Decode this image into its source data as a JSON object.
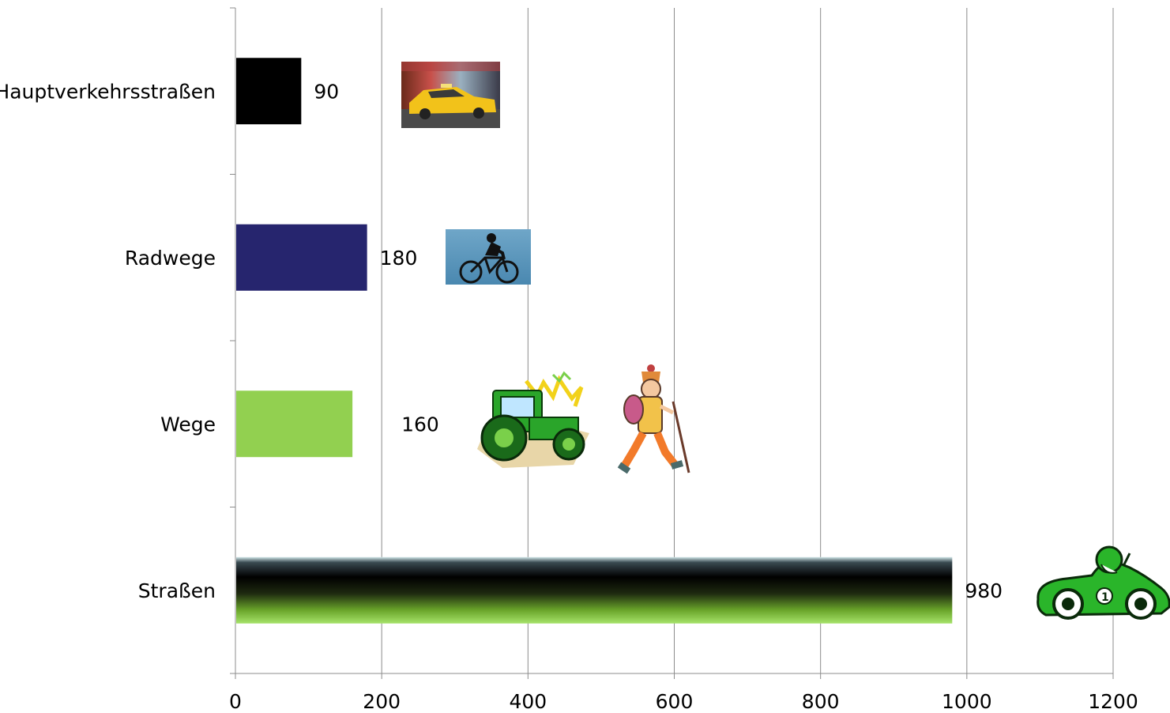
{
  "chart_data": {
    "type": "bar",
    "orientation": "horizontal",
    "categories": [
      "Hauptverkehrsstraßen",
      "Radwege",
      "Wege",
      "Straßen"
    ],
    "values": [
      90,
      180,
      160,
      980
    ],
    "value_labels": [
      "90",
      "180",
      "160",
      "980"
    ],
    "colors": [
      "#000000",
      "#26256e",
      "#92d050",
      "gradient-black-green"
    ],
    "xlim": [
      0,
      1200
    ],
    "xticks": [
      "0",
      "200",
      "400",
      "600",
      "800",
      "1000",
      "1200"
    ],
    "grid": "vertical",
    "title": "",
    "xlabel": "",
    "ylabel": "",
    "legend": "none",
    "illustrations": [
      "taxi-photo",
      "cyclist-photo",
      "tractor-clipart",
      "hiker-clipart",
      "race-car-clipart"
    ]
  }
}
